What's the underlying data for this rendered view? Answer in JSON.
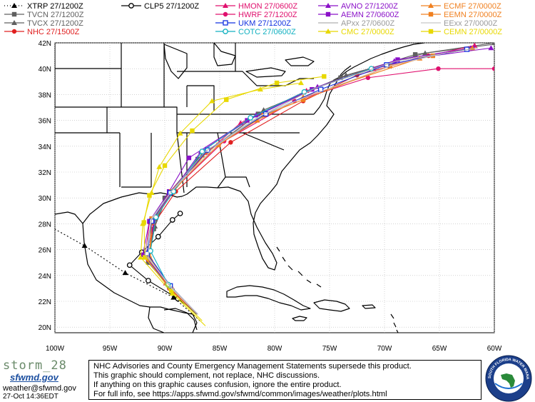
{
  "legend": [
    {
      "label": "XTRP  27/1200Z",
      "color": "#000000",
      "marker": "triangle",
      "dash": "dot"
    },
    {
      "label": "CLP5  27/1200Z",
      "color": "#000000",
      "marker": "circle-hollow",
      "dash": "solid"
    },
    {
      "label": "HMON  27/0600Z",
      "color": "#e0106e",
      "marker": "triangle",
      "dash": "solid"
    },
    {
      "label": "AVNO  27/1200Z",
      "color": "#8a10c8",
      "marker": "triangle",
      "dash": "solid"
    },
    {
      "label": "ECMF  27/0000Z",
      "color": "#f08020",
      "marker": "triangle",
      "dash": "solid"
    },
    {
      "label": "TVCN  27/1200Z",
      "color": "#606060",
      "marker": "square",
      "dash": "solid"
    },
    {
      "label": "HWRF  27/1200Z",
      "color": "#e0106e",
      "marker": "circle",
      "dash": "solid"
    },
    {
      "label": "AEMN  27/0600Z",
      "color": "#8a10c8",
      "marker": "square",
      "dash": "solid"
    },
    {
      "label": "EEMN  27/0000Z",
      "color": "#f08020",
      "marker": "square",
      "dash": "solid"
    },
    {
      "label": "TVCX  27/1200Z",
      "color": "#606060",
      "marker": "triangle",
      "dash": "solid"
    },
    {
      "label": "UKM  27/1200Z",
      "color": "#1030e0",
      "marker": "square-hollow",
      "dash": "solid"
    },
    {
      "label": "APxx  27/0600Z",
      "color": "#b0b0b0",
      "marker": "none",
      "dash": "solid"
    },
    {
      "label": "EExx  27/0000Z",
      "color": "#c8c8c8",
      "marker": "none",
      "dash": "solid"
    },
    {
      "label": "NHC  27/1500Z",
      "color": "#e02020",
      "marker": "circle",
      "dash": "solid"
    },
    {
      "label": "COTC  27/0600Z",
      "color": "#10b0c0",
      "marker": "circle-hollow",
      "dash": "solid"
    },
    {
      "label": "CMC  27/0000Z",
      "color": "#e8d800",
      "marker": "triangle",
      "dash": "solid"
    },
    {
      "label": "CEMN  27/0000Z",
      "color": "#e8d800",
      "marker": "square",
      "dash": "solid"
    }
  ],
  "axes": {
    "lat_labels": [
      "42N",
      "40N",
      "38N",
      "36N",
      "34N",
      "32N",
      "30N",
      "28N",
      "26N",
      "24N",
      "22N",
      "20N"
    ],
    "lon_labels": [
      "100W",
      "95W",
      "90W",
      "85W",
      "80W",
      "75W",
      "70W",
      "65W",
      "60W"
    ]
  },
  "footer": {
    "logo_text": "storm_28",
    "logo_sub": "sfwmd.gov",
    "contact": "weather@sfwmd.gov",
    "timestamp": "27-Oct 14:36EDT",
    "disclaimer": [
      "NHC Advisories and County Emergency Management Statements supersede this product.",
      "This graphic should complement, not replace, NHC discussions.",
      "If anything on this graphic causes confusion, ignore the entire product.",
      "For full info, see  https://apps.sfwmd.gov/sfwmd/common/images/weather/plots.html"
    ],
    "seal_text": "SOUTH FLORIDA WATER MANAGEMENT DISTRICT"
  },
  "tracks": [
    {
      "model": "XTRP",
      "color": "#000000",
      "dash": "2,3",
      "marker": "triangle",
      "pts": [
        [
          20.5,
          -86.8
        ],
        [
          22.3,
          -89.2
        ],
        [
          24.2,
          -93.6
        ],
        [
          26.3,
          -97.3
        ],
        [
          28.2,
          -101.3
        ],
        [
          29.9,
          -103.8
        ]
      ]
    },
    {
      "model": "CLP5",
      "color": "#000000",
      "dash": "",
      "marker": "circle-hollow",
      "pts": [
        [
          21.0,
          -87.0
        ],
        [
          22.2,
          -88.8
        ],
        [
          23.6,
          -91.5
        ],
        [
          24.8,
          -93.2
        ],
        [
          25.8,
          -92.1
        ],
        [
          27.0,
          -90.6
        ],
        [
          28.3,
          -89.3
        ],
        [
          28.8,
          -88.6
        ]
      ]
    },
    {
      "model": "TVCN",
      "color": "#606060",
      "dash": "",
      "marker": "square",
      "pts": [
        [
          21.0,
          -87.1
        ],
        [
          22.8,
          -89.3
        ],
        [
          25.0,
          -91.5
        ],
        [
          27.6,
          -91.0
        ],
        [
          30.0,
          -90.0
        ],
        [
          33.0,
          -87.0
        ],
        [
          36.5,
          -81.5
        ],
        [
          39.3,
          -74.0
        ],
        [
          41.1,
          -67.2
        ],
        [
          42.0,
          -60.0
        ]
      ]
    },
    {
      "model": "TVCX",
      "color": "#606060",
      "dash": "",
      "marker": "triangle",
      "pts": [
        [
          21.0,
          -87.1
        ],
        [
          22.8,
          -89.3
        ],
        [
          25.1,
          -91.5
        ],
        [
          27.8,
          -90.9
        ],
        [
          30.1,
          -89.8
        ],
        [
          33.3,
          -86.6
        ],
        [
          36.8,
          -81.0
        ],
        [
          39.5,
          -73.5
        ],
        [
          41.2,
          -66.3
        ],
        [
          42.0,
          -59.0
        ]
      ]
    },
    {
      "model": "NHC",
      "color": "#e02020",
      "dash": "",
      "marker": "circle",
      "pts": [
        [
          21.0,
          -87.0
        ],
        [
          23.0,
          -89.4
        ],
        [
          25.2,
          -91.5
        ],
        [
          28.0,
          -91.0
        ],
        [
          30.5,
          -89.0
        ],
        [
          34.3,
          -84.0
        ],
        [
          37.5,
          -77.4
        ],
        [
          39.5,
          -72.5
        ],
        [
          41.0,
          -66.0
        ]
      ]
    },
    {
      "model": "HMON",
      "color": "#e0106e",
      "dash": "",
      "marker": "triangle",
      "pts": [
        [
          21.0,
          -87.0
        ],
        [
          23.4,
          -89.9
        ],
        [
          25.8,
          -91.6
        ],
        [
          28.5,
          -90.9
        ],
        [
          30.5,
          -89.5
        ],
        [
          33.5,
          -86.2
        ],
        [
          35.8,
          -83.1
        ],
        [
          38.3,
          -77.1
        ],
        [
          40.0,
          -71.0
        ],
        [
          41.8,
          -61.8
        ]
      ]
    },
    {
      "model": "HWRF",
      "color": "#e0106e",
      "dash": "",
      "marker": "circle",
      "pts": [
        [
          21.0,
          -87.0
        ],
        [
          23.0,
          -89.6
        ],
        [
          25.4,
          -91.8
        ],
        [
          28.1,
          -91.4
        ],
        [
          30.3,
          -89.6
        ],
        [
          34.4,
          -84.6
        ],
        [
          37.5,
          -78.2
        ],
        [
          39.3,
          -71.5
        ],
        [
          40.0,
          -65.1
        ],
        [
          40.0,
          -60.0
        ]
      ]
    },
    {
      "model": "AVNO",
      "color": "#8a10c8",
      "dash": "",
      "marker": "triangle",
      "pts": [
        [
          21.0,
          -87.0
        ],
        [
          23.1,
          -89.5
        ],
        [
          25.6,
          -91.7
        ],
        [
          28.6,
          -90.8
        ],
        [
          30.4,
          -89.4
        ],
        [
          33.6,
          -86.7
        ],
        [
          36.4,
          -81.7
        ],
        [
          38.6,
          -76.1
        ],
        [
          40.6,
          -69.1
        ],
        [
          41.6,
          -60.3
        ]
      ]
    },
    {
      "model": "AEMN",
      "color": "#8a10c8",
      "dash": "",
      "marker": "square",
      "pts": [
        [
          21.0,
          -87.0
        ],
        [
          23.2,
          -89.5
        ],
        [
          25.6,
          -92.0
        ],
        [
          28.2,
          -91.4
        ],
        [
          30.5,
          -89.6
        ],
        [
          33.1,
          -87.8
        ],
        [
          36.0,
          -82.5
        ],
        [
          38.4,
          -76.6
        ],
        [
          40.7,
          -68.8
        ],
        [
          41.6,
          -62.0
        ]
      ]
    },
    {
      "model": "ECMF",
      "color": "#f08020",
      "dash": "",
      "marker": "triangle",
      "pts": [
        [
          21.0,
          -87.0
        ],
        [
          23.0,
          -89.5
        ],
        [
          25.3,
          -91.3
        ],
        [
          28.1,
          -91.2
        ],
        [
          30.4,
          -89.3
        ],
        [
          33.6,
          -86.1
        ],
        [
          36.0,
          -81.6
        ],
        [
          37.8,
          -77.4
        ],
        [
          40.8,
          -66.8
        ],
        [
          41.6,
          -62.0
        ]
      ]
    },
    {
      "model": "EEMN",
      "color": "#f08020",
      "dash": "",
      "marker": "square",
      "pts": [
        [
          21.0,
          -87.0
        ],
        [
          23.1,
          -89.5
        ],
        [
          25.3,
          -91.4
        ],
        [
          28.4,
          -91.2
        ],
        [
          30.5,
          -89.4
        ],
        [
          34.1,
          -85.1
        ],
        [
          36.4,
          -81.0
        ],
        [
          37.6,
          -77.4
        ],
        [
          40.2,
          -69.5
        ],
        [
          41.0,
          -65.6
        ]
      ]
    },
    {
      "model": "UKM",
      "color": "#1030e0",
      "dash": "",
      "marker": "square-hollow",
      "pts": [
        [
          21.0,
          -87.0
        ],
        [
          23.2,
          -89.5
        ],
        [
          25.7,
          -91.6
        ],
        [
          28.2,
          -91.2
        ],
        [
          30.4,
          -89.5
        ],
        [
          33.7,
          -86.1
        ],
        [
          36.5,
          -80.8
        ],
        [
          38.4,
          -75.8
        ],
        [
          40.3,
          -69.8
        ],
        [
          41.5,
          -62.5
        ]
      ]
    },
    {
      "model": "COTC",
      "color": "#10b0c0",
      "dash": "",
      "marker": "circle-hollow",
      "pts": [
        [
          21.0,
          -87.0
        ],
        [
          23.3,
          -89.7
        ],
        [
          25.9,
          -91.3
        ],
        [
          28.5,
          -90.8
        ],
        [
          30.5,
          -89.2
        ],
        [
          33.6,
          -86.6
        ],
        [
          36.2,
          -82.2
        ],
        [
          38.2,
          -77.3
        ],
        [
          40.0,
          -71.2
        ]
      ]
    },
    {
      "model": "CMC",
      "color": "#e8d800",
      "dash": "",
      "marker": "triangle",
      "pts": [
        [
          20.1,
          -86.3
        ],
        [
          22.6,
          -89.3
        ],
        [
          25.4,
          -92.2
        ],
        [
          28.0,
          -92.0
        ],
        [
          30.4,
          -91.2
        ],
        [
          32.4,
          -90.5
        ],
        [
          35.0,
          -88.6
        ],
        [
          37.5,
          -85.7
        ],
        [
          38.4,
          -81.3
        ],
        [
          38.9,
          -77.6
        ]
      ]
    },
    {
      "model": "CEMN",
      "color": "#e8d800",
      "dash": "",
      "marker": "square",
      "pts": [
        [
          20.5,
          -86.6
        ],
        [
          22.8,
          -89.4
        ],
        [
          25.4,
          -91.8
        ],
        [
          28.1,
          -91.9
        ],
        [
          30.2,
          -91.4
        ],
        [
          32.5,
          -90.0
        ],
        [
          35.2,
          -87.5
        ],
        [
          37.6,
          -84.4
        ],
        [
          38.9,
          -79.8
        ],
        [
          39.4,
          -75.5
        ]
      ]
    },
    {
      "model": "APxx",
      "color": "#b0b0b0",
      "dash": "",
      "marker": "none",
      "pts": [
        [
          21.0,
          -87.0
        ],
        [
          23.2,
          -89.5
        ],
        [
          25.6,
          -91.8
        ],
        [
          28.3,
          -91.2
        ],
        [
          30.4,
          -89.5
        ],
        [
          33.6,
          -86.3
        ],
        [
          36.2,
          -81.6
        ],
        [
          38.5,
          -76.3
        ],
        [
          40.6,
          -68.9
        ],
        [
          41.6,
          -61.5
        ]
      ]
    },
    {
      "model": "EExx",
      "color": "#c8c8c8",
      "dash": "",
      "marker": "none",
      "pts": [
        [
          21.0,
          -87.0
        ],
        [
          23.1,
          -89.5
        ],
        [
          25.4,
          -91.5
        ],
        [
          28.3,
          -91.3
        ],
        [
          30.5,
          -89.4
        ],
        [
          34.0,
          -85.4
        ],
        [
          36.4,
          -81.2
        ],
        [
          37.8,
          -77.2
        ],
        [
          40.3,
          -69.2
        ],
        [
          41.2,
          -64.5
        ]
      ]
    }
  ]
}
